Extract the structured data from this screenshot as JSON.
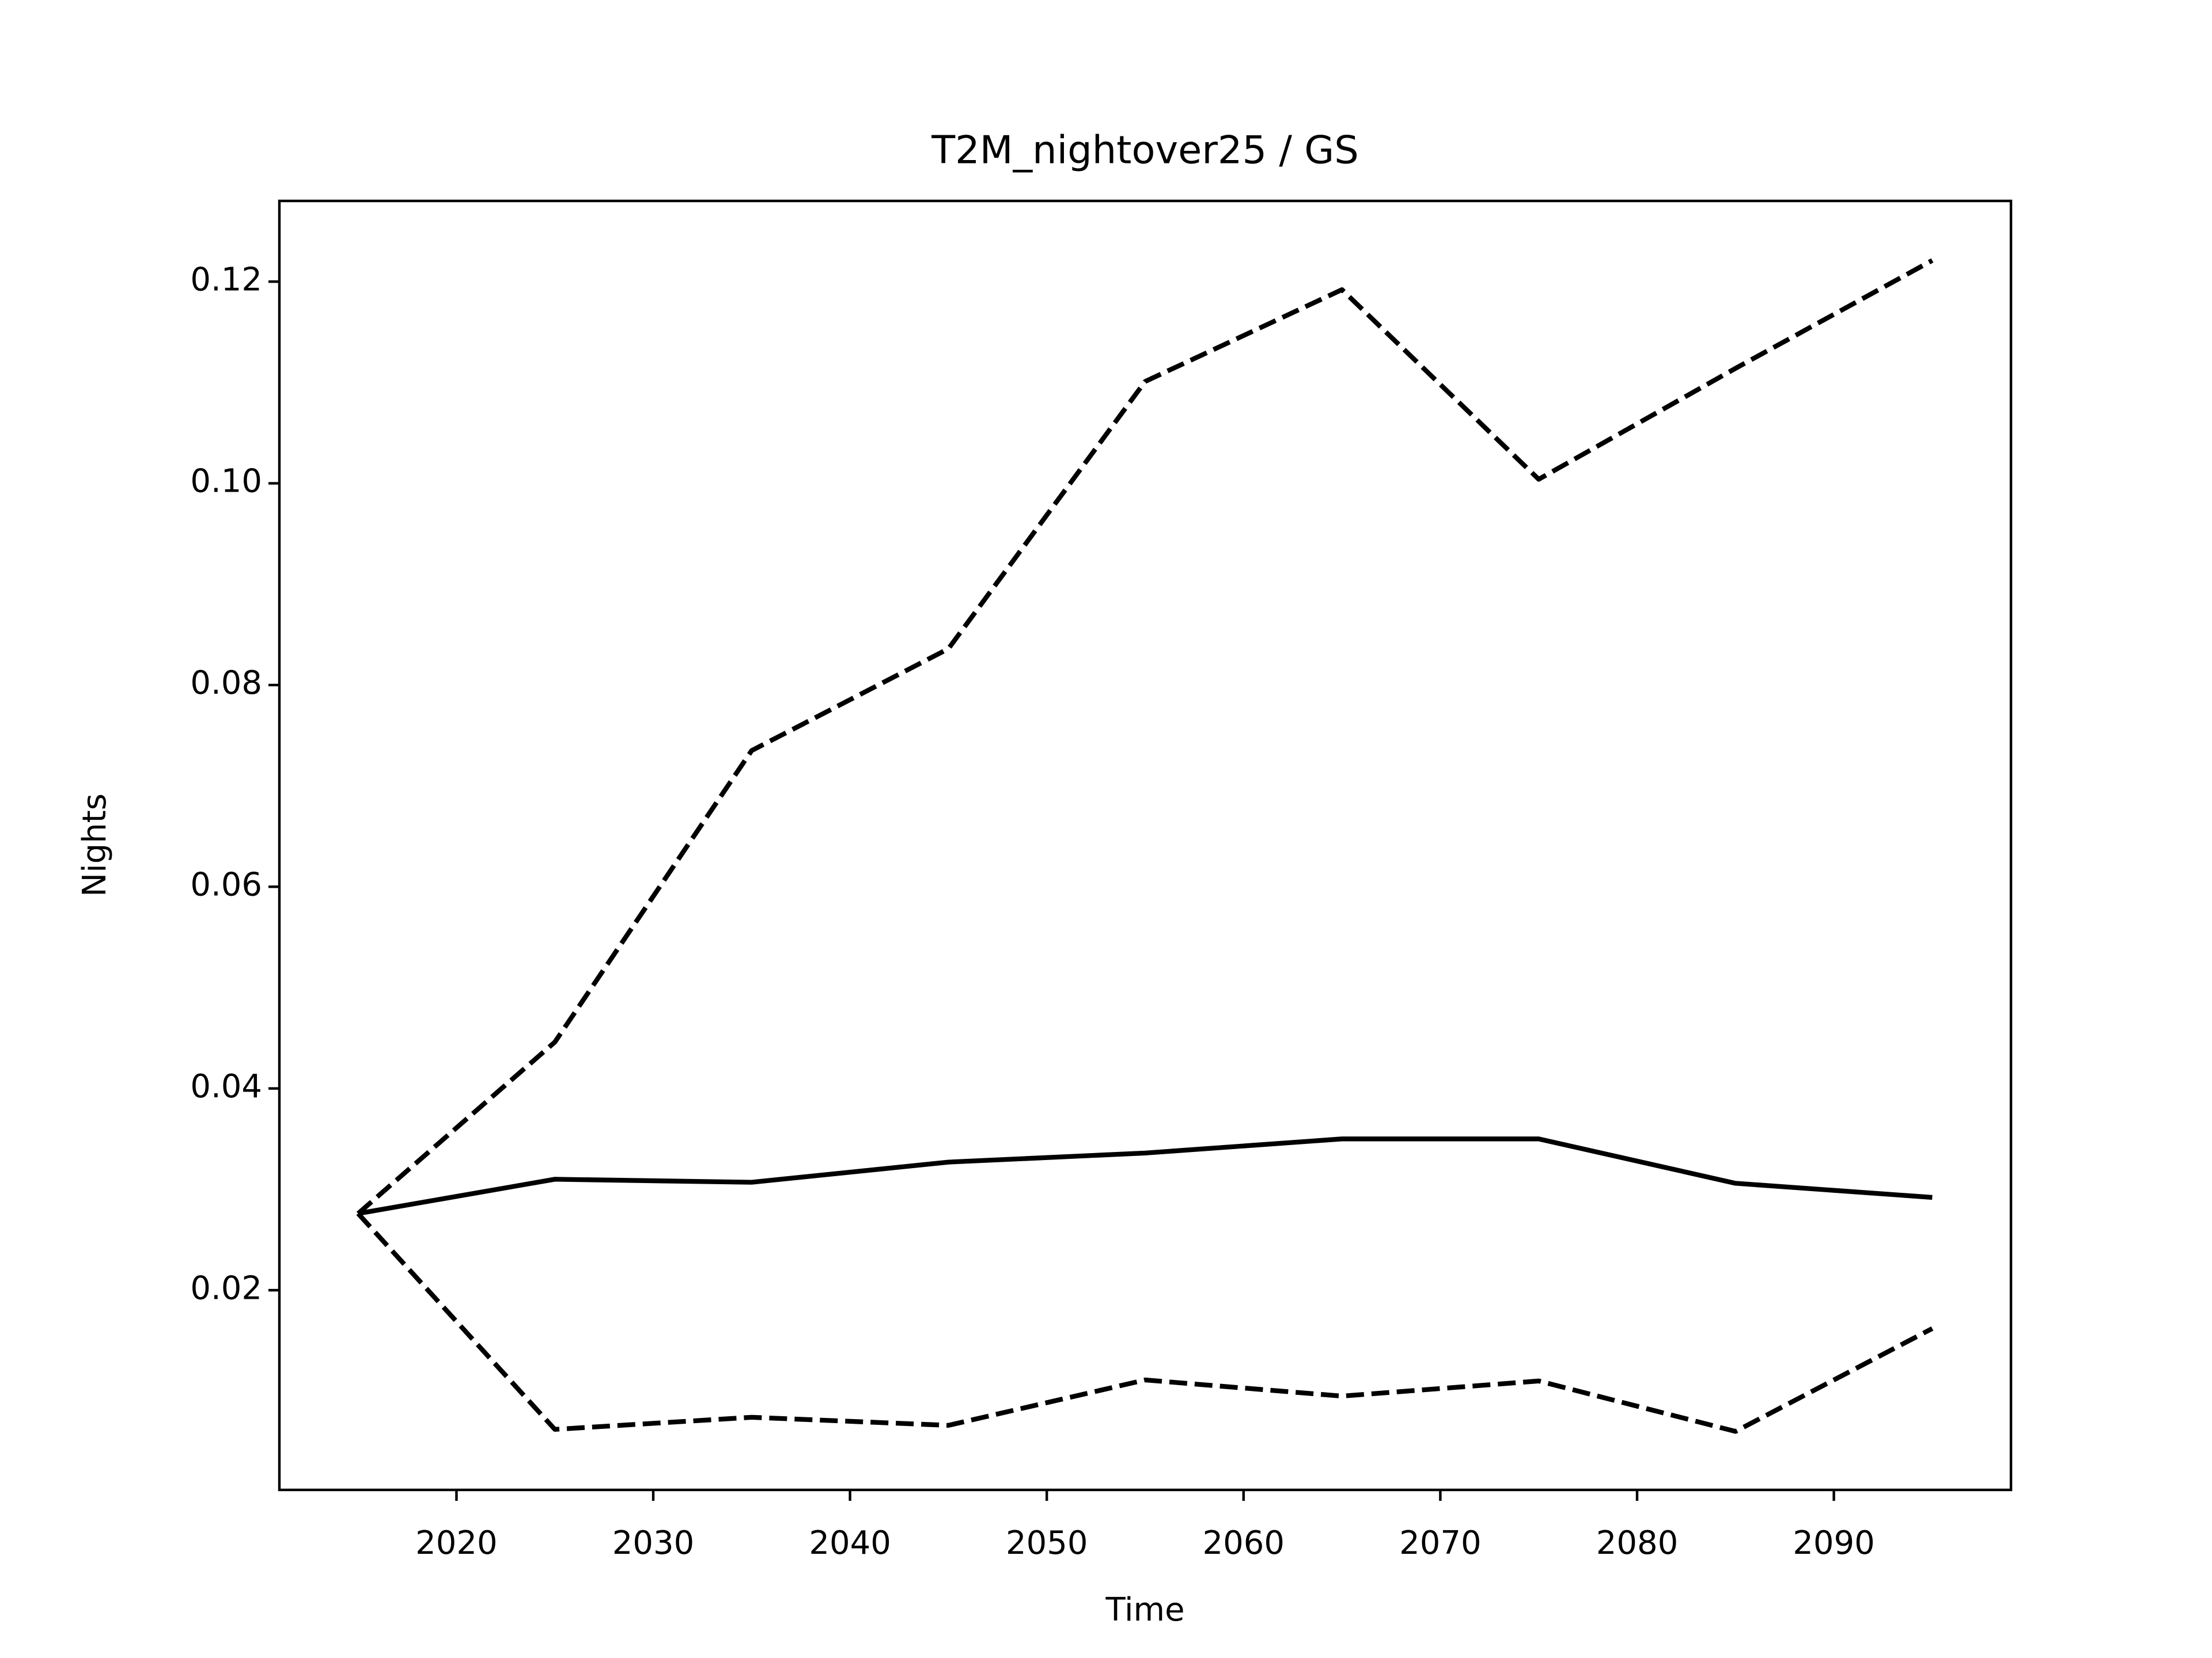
{
  "chart_data": {
    "type": "line",
    "title": "T2M_nightover25 / GS",
    "x_label": "Time",
    "y_label": "Nights",
    "x": [
      2015,
      2025,
      2035,
      2045,
      2055,
      2065,
      2075,
      2085,
      2095
    ],
    "series": [
      {
        "color": "#000000",
        "linestyle": "solid",
        "values": [
          0.0276,
          0.031,
          0.0307,
          0.0327,
          0.0336,
          0.035,
          0.035,
          0.0306,
          0.0292
        ]
      },
      {
        "color": "#000000",
        "linestyle": "dashed",
        "values": [
          0.0276,
          0.0446,
          0.0735,
          0.0836,
          0.1101,
          0.1192,
          0.1004,
          0.1114,
          0.1221
        ]
      },
      {
        "color": "#000000",
        "linestyle": "dashed",
        "values": [
          0.0276,
          0.0062,
          0.0074,
          0.0066,
          0.0111,
          0.0095,
          0.011,
          0.006,
          0.0162
        ]
      }
    ],
    "xlim": [
      2011,
      2099
    ],
    "xticks": [
      2020,
      2030,
      2040,
      2050,
      2060,
      2070,
      2080,
      2090
    ],
    "ylim": [
      0.0002,
      0.128
    ],
    "yticks": [
      0.02,
      0.04,
      0.06,
      0.08,
      {
        "value": 0.1,
        "label": "0.10"
      },
      0.12
    ],
    "grid": false
  }
}
